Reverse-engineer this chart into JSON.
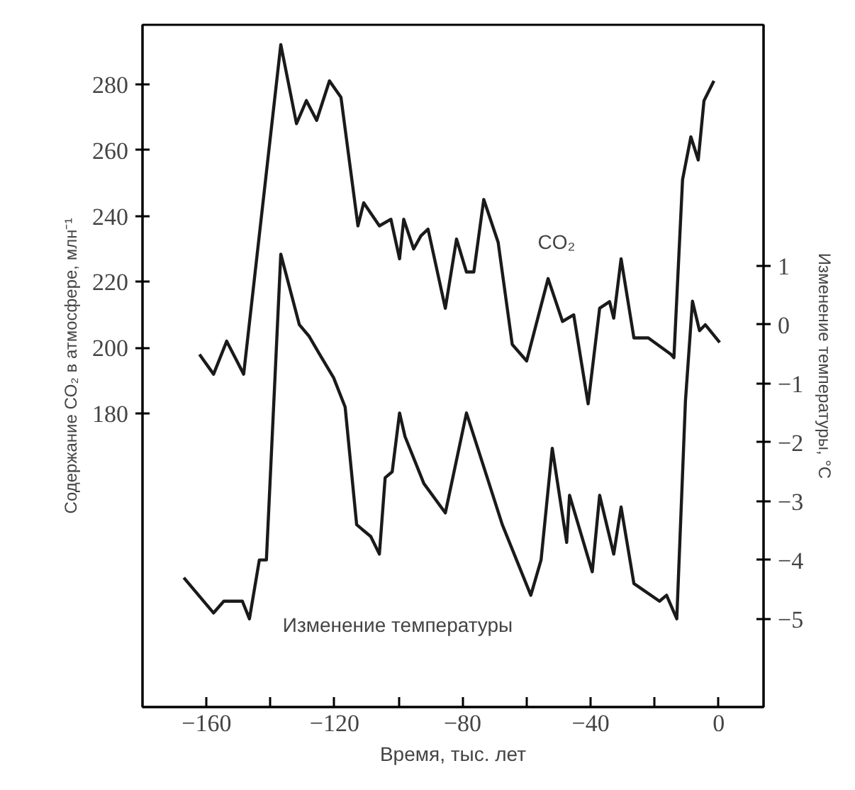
{
  "chart_data": {
    "type": "line",
    "xlabel": "Время, тыс. лет",
    "ylabel": "Содержание CO₂ в атмосфере, млн⁻¹",
    "y2label": "Изменение температуры, °C",
    "xlim": [
      -180,
      14
    ],
    "xticks": [
      -160,
      {
        "value": -140,
        "label": null
      },
      -120,
      {
        "value": -100,
        "label": null
      },
      -80,
      {
        "value": -60,
        "label": null
      },
      -40,
      {
        "value": -20,
        "label": null
      },
      0
    ],
    "ylim": [
      91,
      298
    ],
    "yticks": [
      180,
      200,
      220,
      240,
      260,
      280
    ],
    "y2lim": [
      -6.5,
      5.1
    ],
    "y2ticks": [
      -5,
      -4,
      -3,
      -2,
      -1,
      0,
      1
    ],
    "grid": false,
    "marker": "none",
    "line_style": "solid",
    "series": [
      {
        "color": "#1a1a1a",
        "x": [
          -162.2,
          -157.8,
          -153.7,
          -148.4,
          -136.8,
          -131.9,
          -128.8,
          -125.6,
          -121.6,
          -118,
          -112.7,
          -110.9,
          -106,
          -102.4,
          -99.7,
          -98.4,
          -95.3,
          -93,
          -90.8,
          -85.4,
          -81.9,
          -78.8,
          -76.5,
          -73.4,
          -68.9,
          -64.5,
          -60,
          -53.3,
          -48.8,
          -45.3,
          -40.8,
          -37.2,
          -34.1,
          -32.8,
          -30.5,
          -26.5,
          -22,
          -14.9,
          -14,
          -11.3,
          -8.7,
          -6.4,
          -4.6,
          -1.5
        ],
        "values": [
          198,
          192,
          202,
          192,
          292,
          268,
          275,
          269,
          281,
          276,
          237,
          244,
          237,
          239,
          227,
          239,
          230,
          234,
          236,
          212,
          233,
          223,
          223,
          245,
          232,
          201,
          196,
          221,
          208,
          210,
          183,
          212,
          214,
          209,
          227,
          203,
          203,
          198,
          197,
          251,
          264,
          257,
          275,
          281
        ]
      },
      {
        "color": "#1a1a1a",
        "axis": "y2",
        "x": [
          -167.1,
          -157.8,
          -154.6,
          -148.8,
          -146.6,
          -143.5,
          -141.3,
          -136.8,
          -131,
          -127.9,
          -124.7,
          -120.3,
          -116.7,
          -113.1,
          -108.7,
          -106,
          -104.2,
          -102,
          -99.7,
          -98,
          -92.1,
          -85.4,
          -78.8,
          -67.6,
          -58.7,
          -55.5,
          -52,
          -47.5,
          -46.6,
          -39.5,
          -37.2,
          -32.8,
          -30.5,
          -26.5,
          -18.5,
          -16.3,
          -13.1,
          -10.4,
          -8.2,
          -6,
          -4.2,
          0.3
        ],
        "values": [
          -4.3,
          -4.9,
          -4.7,
          -4.7,
          -5.0,
          -4.0,
          -4.0,
          1.2,
          0.0,
          -0.2,
          -0.5,
          -0.9,
          -1.4,
          -3.4,
          -3.6,
          -3.9,
          -2.6,
          -2.5,
          -1.5,
          -1.9,
          -2.7,
          -3.2,
          -1.5,
          -3.4,
          -4.6,
          -4.0,
          -2.1,
          -3.7,
          -2.9,
          -4.2,
          -2.9,
          -3.9,
          -3.1,
          -4.4,
          -4.7,
          -4.6,
          -5.0,
          -1.3,
          0.4,
          -0.1,
          0.0,
          -0.3
        ]
      }
    ],
    "annotations": [
      "CO₂",
      "Изменение температуры"
    ]
  }
}
